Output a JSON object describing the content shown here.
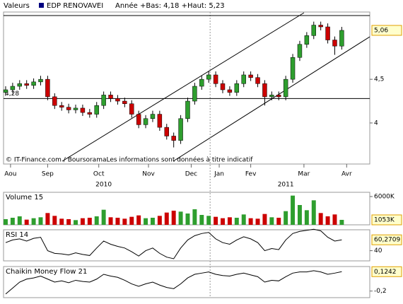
{
  "header": {
    "label": "Valeurs",
    "symbol": "EDP RENOVAVEI",
    "range": "Année +Bas: 4,18 +Haut: 5,23"
  },
  "footer": "© IT-Finance.com / BoursoramaLes informations sont données à titre indicatif",
  "chart_data": [
    {
      "type": "candlestick",
      "open": [
        4.35,
        4.38,
        4.42,
        4.45,
        4.43,
        4.47,
        4.5,
        4.3,
        4.2,
        4.18,
        4.15,
        4.17,
        4.12,
        4.1,
        4.2,
        4.32,
        4.28,
        4.25,
        4.22,
        4.1,
        3.98,
        4.05,
        4.1,
        3.95,
        3.85,
        3.8,
        4.05,
        4.25,
        4.42,
        4.5,
        4.55,
        4.45,
        4.38,
        4.35,
        4.45,
        4.55,
        4.52,
        4.45,
        4.3,
        4.32,
        4.3,
        4.5,
        4.75,
        4.9,
        5.0,
        5.12,
        5.1,
        4.95,
        4.88
      ],
      "high": [
        4.42,
        4.46,
        4.49,
        4.49,
        4.51,
        4.54,
        4.54,
        4.34,
        4.24,
        4.22,
        4.21,
        4.21,
        4.16,
        4.24,
        4.36,
        4.36,
        4.32,
        4.29,
        4.26,
        4.14,
        4.09,
        4.14,
        4.14,
        3.99,
        3.89,
        4.09,
        4.29,
        4.46,
        4.54,
        4.59,
        4.59,
        4.49,
        4.42,
        4.49,
        4.59,
        4.59,
        4.56,
        4.49,
        4.36,
        4.36,
        4.54,
        4.79,
        4.94,
        5.04,
        5.16,
        5.16,
        5.14,
        4.99,
        5.1
      ],
      "low": [
        4.31,
        4.34,
        4.38,
        4.39,
        4.39,
        4.43,
        4.26,
        4.16,
        4.14,
        4.11,
        4.11,
        4.08,
        4.06,
        4.06,
        4.16,
        4.24,
        4.21,
        4.18,
        4.06,
        3.94,
        3.94,
        4.01,
        3.91,
        3.81,
        3.72,
        3.76,
        4.01,
        4.21,
        4.38,
        4.46,
        4.41,
        4.34,
        4.31,
        4.31,
        4.41,
        4.48,
        4.41,
        4.2,
        4.26,
        4.26,
        4.26,
        4.46,
        4.71,
        4.86,
        4.96,
        5.06,
        4.91,
        4.78,
        4.84
      ],
      "close": [
        4.38,
        4.42,
        4.45,
        4.43,
        4.47,
        4.5,
        4.3,
        4.2,
        4.18,
        4.15,
        4.17,
        4.12,
        4.1,
        4.2,
        4.32,
        4.28,
        4.25,
        4.22,
        4.1,
        3.98,
        4.05,
        4.1,
        3.95,
        3.85,
        3.8,
        4.05,
        4.25,
        4.42,
        4.5,
        4.55,
        4.45,
        4.38,
        4.35,
        4.45,
        4.55,
        4.52,
        4.45,
        4.3,
        4.32,
        4.3,
        4.5,
        4.75,
        4.9,
        5.0,
        5.12,
        5.1,
        4.95,
        4.88,
        5.06
      ],
      "up_color": "#2e9e2e",
      "down_color": "#cc0000",
      "ylim": [
        3.53,
        5.27
      ],
      "yticks": [
        4,
        {
          "value": 4.5,
          "label": "4,5"
        }
      ],
      "hlines": [
        {
          "value": 5.23
        },
        {
          "value": 4.28,
          "label": "4,28"
        }
      ],
      "last": {
        "value": 5.06,
        "label": "5,06"
      },
      "xlim": [
        -0.3,
        52
      ],
      "xticks": [
        {
          "value": 0.7,
          "label": "Aou"
        },
        {
          "value": 6,
          "label": "Sep"
        },
        {
          "value": 13.3,
          "label": "Oct"
        },
        {
          "value": 20.4,
          "label": "Nov"
        },
        {
          "value": 26.5,
          "label": "Dec"
        },
        {
          "value": 30.5,
          "label": "Jan"
        },
        {
          "value": 35,
          "label": "Fev"
        },
        {
          "value": 42.6,
          "label": "Mar"
        },
        {
          "value": 48.7,
          "label": "Avr"
        }
      ],
      "years": [
        {
          "value": 14,
          "label": "2010"
        },
        {
          "value": 40,
          "label": "2011"
        }
      ],
      "year_separator": 29.2
    },
    {
      "type": "bar",
      "title": "Volume 15",
      "values": [
        1200,
        1500,
        1800,
        1100,
        1400,
        1600,
        2500,
        1900,
        1300,
        1200,
        1000,
        1400,
        1500,
        1800,
        3200,
        1600,
        1500,
        1300,
        1700,
        2000,
        1400,
        1500,
        1900,
        2600,
        3000,
        2800,
        2400,
        3300,
        2100,
        1900,
        1700,
        1400,
        1600,
        1500,
        2200,
        1400,
        1300,
        2300,
        1600,
        1500,
        2900,
        6200,
        4200,
        3100,
        5200,
        2500,
        1800,
        2200,
        1053
      ],
      "ylim": [
        0,
        6900
      ],
      "yticks": [
        {
          "value": 6000,
          "label": "6000K"
        }
      ],
      "last": {
        "value": 1053,
        "label": "1053K"
      }
    },
    {
      "type": "line",
      "title": "RSI 14",
      "color": "#000000",
      "values": [
        55,
        60,
        62,
        58,
        63,
        65,
        40,
        35,
        34,
        32,
        36,
        33,
        31,
        45,
        58,
        52,
        48,
        45,
        38,
        30,
        40,
        45,
        35,
        28,
        25,
        45,
        60,
        68,
        72,
        74,
        62,
        55,
        52,
        60,
        66,
        62,
        55,
        40,
        44,
        42,
        60,
        72,
        76,
        78,
        80,
        77,
        65,
        58,
        60.2709
      ],
      "ylim": [
        21,
        79
      ],
      "yticks": [
        40
      ],
      "last": {
        "value": 60.2709,
        "label": "60,2709"
      }
    },
    {
      "type": "line",
      "title": "Chaikin Money Flow 21",
      "color": "#000000",
      "values": [
        -0.25,
        -0.15,
        -0.05,
        0.0,
        0.02,
        0.05,
        0.0,
        -0.05,
        -0.03,
        -0.06,
        -0.02,
        -0.04,
        -0.05,
        0.0,
        0.08,
        0.05,
        0.03,
        -0.02,
        -0.08,
        -0.12,
        -0.08,
        -0.05,
        -0.1,
        -0.14,
        -0.16,
        -0.08,
        0.02,
        0.08,
        0.1,
        0.12,
        0.08,
        0.06,
        0.05,
        0.08,
        0.1,
        0.07,
        0.04,
        -0.05,
        -0.02,
        -0.03,
        0.04,
        0.1,
        0.12,
        0.12,
        0.14,
        0.12,
        0.08,
        0.1,
        0.1242
      ],
      "ylim": [
        -0.31,
        0.21
      ],
      "yticks": [
        {
          "value": -0.2,
          "label": "-0,2"
        }
      ],
      "last": {
        "value": 0.1242,
        "label": "0,1242"
      }
    }
  ]
}
